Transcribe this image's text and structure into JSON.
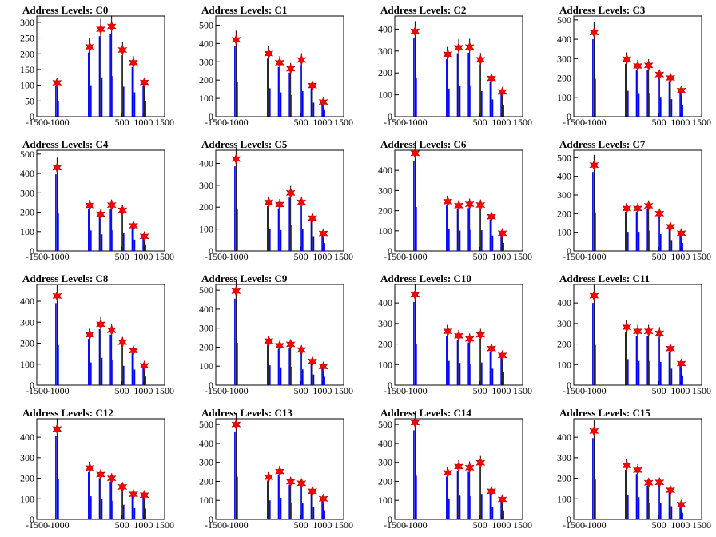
{
  "colors": {
    "histogram": "#0000ff",
    "peak_marker": "#ff0000",
    "marker_edge": "#b00000",
    "axis": "#000000"
  },
  "chart_data": [
    {
      "type": "bar",
      "title": "Address Levels: C0",
      "xlim": [
        -1500,
        1500
      ],
      "ylim": [
        0,
        320
      ],
      "xticks": [
        -1500,
        -1000,
        500,
        1000,
        1500
      ],
      "xtick_labels": [
        "-1500",
        "-1000",
        "500",
        "1000",
        "1500"
      ],
      "yticks": [
        0,
        50,
        100,
        150,
        200,
        250,
        300
      ],
      "peaks": [
        [
          -1024,
          108
        ],
        [
          -256,
          222
        ],
        [
          0,
          278
        ],
        [
          256,
          287
        ],
        [
          512,
          212
        ],
        [
          768,
          172
        ],
        [
          1024,
          109
        ]
      ]
    },
    {
      "type": "bar",
      "title": "Address Levels: C1",
      "xlim": [
        -1500,
        1500
      ],
      "ylim": [
        0,
        550
      ],
      "xticks": [
        -1500,
        -1000,
        500,
        1000,
        1500
      ],
      "xtick_labels": [
        "-1500",
        "-1000",
        "500",
        "1000",
        "1500"
      ],
      "yticks": [
        0,
        100,
        200,
        300,
        400,
        500
      ],
      "peaks": [
        [
          -1024,
          420
        ],
        [
          -256,
          345
        ],
        [
          0,
          295
        ],
        [
          256,
          262
        ],
        [
          512,
          310
        ],
        [
          768,
          170
        ],
        [
          1024,
          80
        ]
      ]
    },
    {
      "type": "bar",
      "title": "Address Levels: C2",
      "xlim": [
        -1500,
        1500
      ],
      "ylim": [
        0,
        460
      ],
      "xticks": [
        -1500,
        -1000,
        500,
        1000,
        1500
      ],
      "xtick_labels": [
        "-1500",
        "-1000",
        "500",
        "1000",
        "1500"
      ],
      "yticks": [
        0,
        100,
        200,
        300,
        400
      ],
      "peaks": [
        [
          -1024,
          390
        ],
        [
          -256,
          285
        ],
        [
          0,
          315
        ],
        [
          256,
          318
        ],
        [
          512,
          260
        ],
        [
          768,
          175
        ],
        [
          1024,
          113
        ]
      ]
    },
    {
      "type": "bar",
      "title": "Address Levels: C3",
      "xlim": [
        -1500,
        1500
      ],
      "ylim": [
        0,
        520
      ],
      "xticks": [
        -1500,
        -1000,
        500,
        1000,
        1500
      ],
      "xtick_labels": [
        "-1500",
        "-1000",
        "500",
        "1000",
        "1500"
      ],
      "yticks": [
        0,
        100,
        200,
        300,
        400,
        500
      ],
      "peaks": [
        [
          -1024,
          435
        ],
        [
          -256,
          297
        ],
        [
          0,
          262
        ],
        [
          256,
          265
        ],
        [
          512,
          218
        ],
        [
          768,
          200
        ],
        [
          1024,
          135
        ]
      ]
    },
    {
      "type": "bar",
      "title": "Address Levels: C4",
      "xlim": [
        -1500,
        1500
      ],
      "ylim": [
        0,
        520
      ],
      "xticks": [
        -1500,
        -1000,
        500,
        1000,
        1500
      ],
      "xtick_labels": [
        "-1500",
        "-1000",
        "500",
        "1000",
        "1500"
      ],
      "yticks": [
        0,
        100,
        200,
        300,
        400,
        500
      ],
      "peaks": [
        [
          -1024,
          430
        ],
        [
          -256,
          235
        ],
        [
          0,
          190
        ],
        [
          256,
          237
        ],
        [
          512,
          210
        ],
        [
          768,
          130
        ],
        [
          1024,
          75
        ]
      ]
    },
    {
      "type": "bar",
      "title": "Address Levels: C5",
      "xlim": [
        -1500,
        1500
      ],
      "ylim": [
        0,
        460
      ],
      "xticks": [
        -1500,
        -1000,
        500,
        1000,
        1500
      ],
      "xtick_labels": [
        "-1500",
        "-1000",
        "500",
        "1000",
        "1500"
      ],
      "yticks": [
        0,
        100,
        200,
        300,
        400
      ],
      "peaks": [
        [
          -1024,
          420
        ],
        [
          -256,
          222
        ],
        [
          0,
          212
        ],
        [
          256,
          265
        ],
        [
          512,
          222
        ],
        [
          768,
          150
        ],
        [
          1024,
          80
        ]
      ]
    },
    {
      "type": "bar",
      "title": "Address Levels: C6",
      "xlim": [
        -1500,
        1500
      ],
      "ylim": [
        0,
        500
      ],
      "xticks": [
        -1500,
        -1000,
        500,
        1000,
        1500
      ],
      "xtick_labels": [
        "-1500",
        "-1000",
        "500",
        "1000",
        "1500"
      ],
      "yticks": [
        0,
        100,
        200,
        300,
        400
      ],
      "peaks": [
        [
          -1024,
          485
        ],
        [
          -256,
          245
        ],
        [
          0,
          225
        ],
        [
          256,
          232
        ],
        [
          512,
          228
        ],
        [
          768,
          170
        ],
        [
          1024,
          88
        ]
      ]
    },
    {
      "type": "bar",
      "title": "Address Levels: C7",
      "xlim": [
        -1500,
        1500
      ],
      "ylim": [
        0,
        540
      ],
      "xticks": [
        -1500,
        -1000,
        500,
        1000,
        1500
      ],
      "xtick_labels": [
        "-1500",
        "-1000",
        "500",
        "1000",
        "1500"
      ],
      "yticks": [
        0,
        100,
        200,
        300,
        400,
        500
      ],
      "peaks": [
        [
          -1024,
          460
        ],
        [
          -256,
          228
        ],
        [
          0,
          228
        ],
        [
          256,
          242
        ],
        [
          512,
          200
        ],
        [
          768,
          130
        ],
        [
          1024,
          95
        ]
      ]
    },
    {
      "type": "bar",
      "title": "Address Levels: C8",
      "xlim": [
        -1500,
        1500
      ],
      "ylim": [
        0,
        480
      ],
      "xticks": [
        -1500,
        -1000,
        500,
        1000,
        1500
      ],
      "xtick_labels": [
        "-1500",
        "-1000",
        "500",
        "1000",
        "1500"
      ],
      "yticks": [
        0,
        100,
        200,
        300,
        400
      ],
      "peaks": [
        [
          -1024,
          425
        ],
        [
          -256,
          240
        ],
        [
          0,
          290
        ],
        [
          256,
          262
        ],
        [
          512,
          205
        ],
        [
          768,
          165
        ],
        [
          1024,
          92
        ]
      ]
    },
    {
      "type": "bar",
      "title": "Address Levels: C9",
      "xlim": [
        -1500,
        1500
      ],
      "ylim": [
        0,
        530
      ],
      "xticks": [
        -1500,
        -1000,
        500,
        1000,
        1500
      ],
      "xtick_labels": [
        "-1500",
        "-1000",
        "500",
        "1000",
        "1500"
      ],
      "yticks": [
        0,
        100,
        200,
        300,
        400,
        500
      ],
      "peaks": [
        [
          -1024,
          495
        ],
        [
          -256,
          232
        ],
        [
          0,
          208
        ],
        [
          256,
          215
        ],
        [
          512,
          185
        ],
        [
          768,
          125
        ],
        [
          1024,
          98
        ]
      ]
    },
    {
      "type": "bar",
      "title": "Address Levels: C10",
      "xlim": [
        -1500,
        1500
      ],
      "ylim": [
        0,
        490
      ],
      "xticks": [
        -1500,
        -1000,
        500,
        1000,
        1500
      ],
      "xtick_labels": [
        "-1500",
        "-1000",
        "500",
        "1000",
        "1500"
      ],
      "yticks": [
        0,
        100,
        200,
        300,
        400
      ],
      "peaks": [
        [
          -1024,
          440
        ],
        [
          -256,
          262
        ],
        [
          0,
          240
        ],
        [
          256,
          225
        ],
        [
          512,
          245
        ],
        [
          768,
          178
        ],
        [
          1024,
          145
        ]
      ]
    },
    {
      "type": "bar",
      "title": "Address Levels: C11",
      "xlim": [
        -1500,
        1500
      ],
      "ylim": [
        0,
        490
      ],
      "xticks": [
        -1500,
        -1000,
        500,
        1000,
        1500
      ],
      "xtick_labels": [
        "-1500",
        "-1000",
        "500",
        "1000",
        "1500"
      ],
      "yticks": [
        0,
        100,
        200,
        300,
        400
      ],
      "peaks": [
        [
          -1024,
          435
        ],
        [
          -256,
          282
        ],
        [
          0,
          262
        ],
        [
          256,
          262
        ],
        [
          512,
          252
        ],
        [
          768,
          178
        ],
        [
          1024,
          105
        ]
      ]
    },
    {
      "type": "bar",
      "title": "Address Levels: C12",
      "xlim": [
        -1500,
        1500
      ],
      "ylim": [
        0,
        490
      ],
      "xticks": [
        -1500,
        -1000,
        500,
        1000,
        1500
      ],
      "xtick_labels": [
        "-1500",
        "-1000",
        "500",
        "1000",
        "1500"
      ],
      "yticks": [
        0,
        100,
        200,
        300,
        400
      ],
      "peaks": [
        [
          -1024,
          440
        ],
        [
          -256,
          250
        ],
        [
          0,
          218
        ],
        [
          256,
          200
        ],
        [
          512,
          158
        ],
        [
          768,
          122
        ],
        [
          1024,
          118
        ]
      ]
    },
    {
      "type": "bar",
      "title": "Address Levels: C13",
      "xlim": [
        -1500,
        1500
      ],
      "ylim": [
        0,
        530
      ],
      "xticks": [
        -1500,
        -1000,
        500,
        1000,
        1500
      ],
      "xtick_labels": [
        "-1500",
        "-1000",
        "500",
        "1000",
        "1500"
      ],
      "yticks": [
        0,
        100,
        200,
        300,
        400,
        500
      ],
      "peaks": [
        [
          -1024,
          500
        ],
        [
          -256,
          222
        ],
        [
          0,
          252
        ],
        [
          256,
          198
        ],
        [
          512,
          190
        ],
        [
          768,
          148
        ],
        [
          1024,
          108
        ]
      ]
    },
    {
      "type": "bar",
      "title": "Address Levels: C14",
      "xlim": [
        -1500,
        1500
      ],
      "ylim": [
        0,
        530
      ],
      "xticks": [
        -1500,
        -1000,
        500,
        1000,
        1500
      ],
      "xtick_labels": [
        "-1500",
        "-1000",
        "500",
        "1000",
        "1500"
      ],
      "yticks": [
        0,
        100,
        200,
        300,
        400,
        500
      ],
      "peaks": [
        [
          -1024,
          510
        ],
        [
          -256,
          245
        ],
        [
          0,
          278
        ],
        [
          256,
          272
        ],
        [
          512,
          298
        ],
        [
          768,
          148
        ],
        [
          1024,
          105
        ]
      ]
    },
    {
      "type": "bar",
      "title": "Address Levels: C15",
      "xlim": [
        -1500,
        1500
      ],
      "ylim": [
        0,
        490
      ],
      "xticks": [
        -1500,
        -1000,
        500,
        1000,
        1500
      ],
      "xtick_labels": [
        "-1500",
        "-1000",
        "500",
        "1000",
        "1500"
      ],
      "yticks": [
        0,
        100,
        200,
        300,
        400
      ],
      "peaks": [
        [
          -1024,
          430
        ],
        [
          -256,
          262
        ],
        [
          0,
          240
        ],
        [
          256,
          178
        ],
        [
          512,
          180
        ],
        [
          768,
          142
        ],
        [
          1024,
          72
        ]
      ]
    }
  ]
}
